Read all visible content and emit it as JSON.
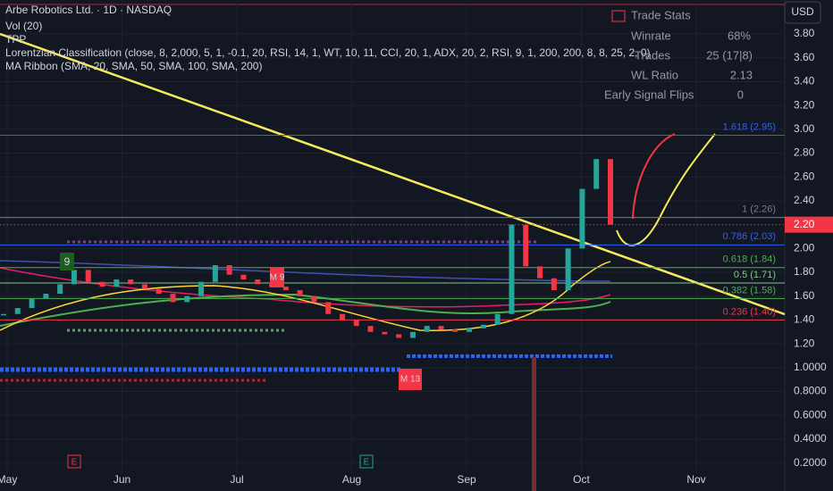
{
  "header": {
    "title": "Arbe Robotics Ltd. · 1D · NASDAQ",
    "indicators": [
      "Vol (20)",
      "TPP",
      "Lorentzian Classification (close, 8, 2,000, 5, 1, -0.1, 20, RSI, 14, 1, WT, 10, 11, CCI, 20, 1, ADX, 20, 2, RSI, 9, 1, 200, 200, 8, 8, 25, 2, 0)",
      "MA Ribbon (SMA, 20, SMA, 50, SMA, 100, SMA, 200)"
    ]
  },
  "currency": "USD",
  "trade_stats": {
    "title": "Trade Stats",
    "rows": [
      [
        "Winrate",
        "68%"
      ],
      [
        "Trades",
        "25 (17|8)"
      ],
      [
        "WL Ratio",
        "2.13"
      ],
      [
        "Early Signal Flips",
        "0"
      ]
    ]
  },
  "price_axis": {
    "ylim": [
      -0.035,
      4.085
    ],
    "ticks": [
      {
        "value": 3.8,
        "label": "3.80"
      },
      {
        "value": 3.6,
        "label": "3.60"
      },
      {
        "value": 3.4,
        "label": "3.40"
      },
      {
        "value": 3.2,
        "label": "3.20"
      },
      {
        "value": 3.0,
        "label": "3.00"
      },
      {
        "value": 2.8,
        "label": "2.80"
      },
      {
        "value": 2.6,
        "label": "2.60"
      },
      {
        "value": 2.4,
        "label": "2.40"
      },
      {
        "value": 2.2,
        "label": "2.20"
      },
      {
        "value": 2.0,
        "label": "2.00"
      },
      {
        "value": 1.8,
        "label": "1.80"
      },
      {
        "value": 1.6,
        "label": "1.60"
      },
      {
        "value": 1.4,
        "label": "1.40"
      },
      {
        "value": 1.2,
        "label": "1.20"
      },
      {
        "value": 1.0,
        "label": "1.0000"
      },
      {
        "value": 0.8,
        "label": "0.8000"
      },
      {
        "value": 0.6,
        "label": "0.6000"
      },
      {
        "value": 0.4,
        "label": "0.4000"
      },
      {
        "value": 0.2,
        "label": "0.2000"
      }
    ],
    "last_price": {
      "value": 2.2,
      "label": "2.20"
    }
  },
  "months": [
    "May",
    "Jun",
    "Jul",
    "Aug",
    "Sep",
    "Oct",
    "Nov"
  ],
  "close": [
    1.45,
    1.5,
    1.58,
    1.62,
    1.7,
    1.82,
    1.72,
    1.68,
    1.74,
    1.7,
    1.66,
    1.62,
    1.55,
    1.6,
    1.72,
    1.86,
    1.78,
    1.74,
    1.7,
    1.68,
    1.65,
    1.6,
    1.55,
    1.45,
    1.4,
    1.35,
    1.3,
    1.28,
    1.25,
    1.3,
    1.35,
    1.32,
    1.3,
    1.33,
    1.36,
    1.45,
    2.2,
    1.85,
    1.75,
    1.65,
    2.0,
    2.5,
    2.75,
    2.2
  ],
  "fib_levels": [
    {
      "value": 2.95,
      "label": "1.618 (2.95)",
      "color": "#2962ff"
    },
    {
      "value": 2.26,
      "label": "1 (2.26)",
      "color": "#787b86"
    },
    {
      "value": 2.03,
      "label": "0.786 (2.03)",
      "color": "#2962ff"
    },
    {
      "value": 1.84,
      "label": "0.618 (1.84)",
      "color": "#4caf50"
    },
    {
      "value": 1.71,
      "label": "0.5 (1.71)",
      "color": "#81c784"
    },
    {
      "value": 1.58,
      "label": "0.382 (1.58)",
      "color": "#4caf50"
    },
    {
      "value": 1.4,
      "label": "0.236 (1.40)",
      "color": "#f23645"
    }
  ],
  "signals": [
    "9",
    "M 9",
    "M 13",
    "E",
    "E"
  ]
}
